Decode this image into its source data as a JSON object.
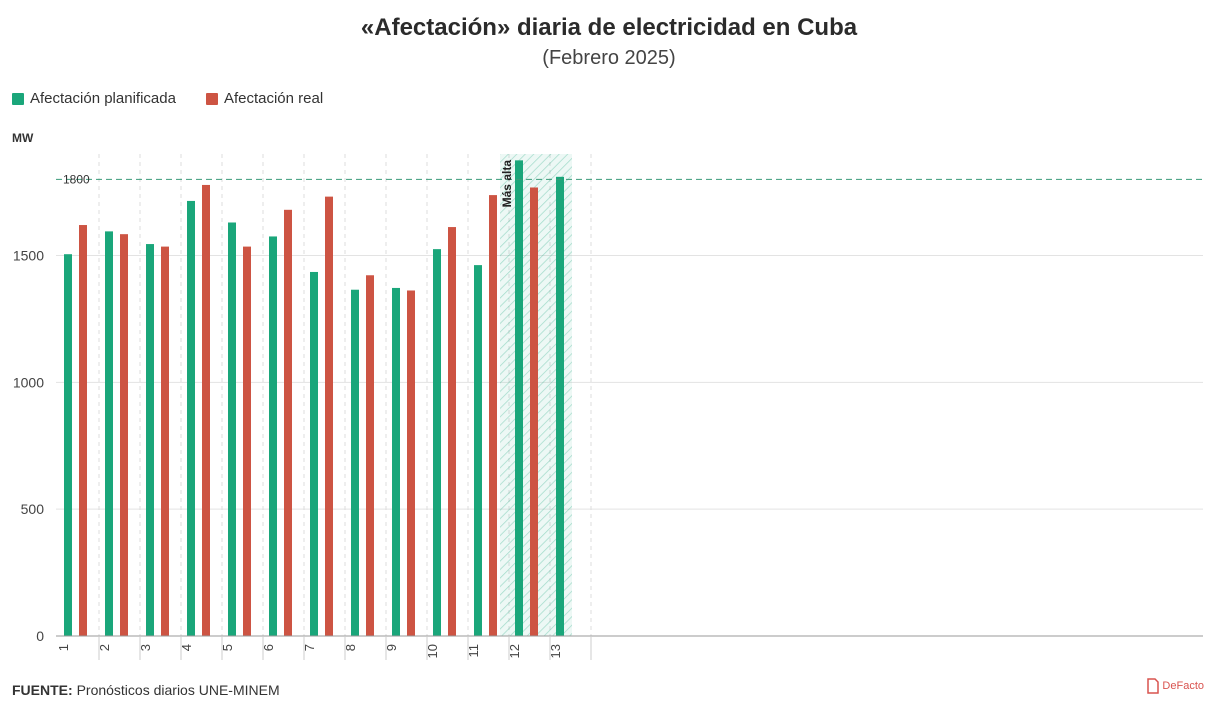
{
  "title": "«Afectación» diaria de electricidad en Cuba",
  "subtitle": "(Febrero 2025)",
  "unit_label": "MW",
  "source_label": "FUENTE:",
  "source_text": "Pronósticos diarios UNE-MINEM",
  "logo_text": "DeFacto",
  "colors": {
    "planned": "#1aa67a",
    "real": "#cd5443",
    "reference_line": "#3a9b7a",
    "highlight": "#1aa67a"
  },
  "chart_data": {
    "type": "bar",
    "categories": [
      "1",
      "2",
      "3",
      "4",
      "5",
      "6",
      "7",
      "8",
      "9",
      "10",
      "11",
      "12",
      "13"
    ],
    "series": [
      {
        "name": "Afectación planificada",
        "values": [
          1505,
          1595,
          1545,
          1715,
          1630,
          1575,
          1435,
          1365,
          1372,
          1525,
          1462,
          1875,
          1810
        ]
      },
      {
        "name": "Afectación real",
        "values": [
          1620,
          1584,
          1535,
          1778,
          1535,
          1680,
          1732,
          1422,
          1362,
          1612,
          1738,
          1768,
          null
        ]
      }
    ],
    "ylabel": "MW",
    "ylim": [
      0,
      1880
    ],
    "yticks": [
      0,
      500,
      1000,
      1500
    ],
    "reference_line": {
      "value": 1800,
      "label": "1800"
    },
    "highlight": {
      "category": "12",
      "label": "Más alta"
    },
    "grid": true,
    "legend_position": "top-left"
  }
}
